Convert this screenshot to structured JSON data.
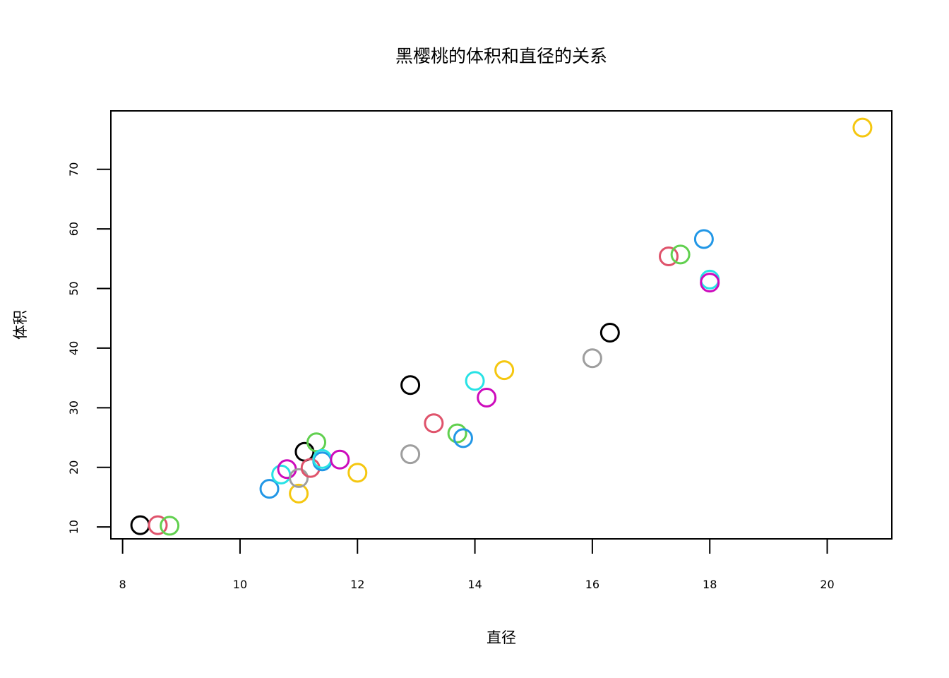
{
  "chart_data": {
    "type": "scatter",
    "title": "黑樱桃的体积和直径的关系",
    "xlabel": "直径",
    "ylabel": "体积",
    "xlim": [
      7.8,
      21.1
    ],
    "ylim": [
      8.0,
      79.8
    ],
    "xticks": [
      8,
      10,
      12,
      14,
      16,
      18,
      20
    ],
    "yticks": [
      10,
      20,
      30,
      40,
      50,
      60,
      70
    ],
    "grid": false,
    "legend": "none",
    "marker": "open-circle",
    "palette": [
      "#000000",
      "#DF536B",
      "#61D04F",
      "#2297E6",
      "#28E2E5",
      "#CD0BBC",
      "#F5C710",
      "#9E9E9E"
    ],
    "points": [
      {
        "x": 8.3,
        "y": 10.3,
        "color": "#000000"
      },
      {
        "x": 8.6,
        "y": 10.3,
        "color": "#DF536B"
      },
      {
        "x": 8.8,
        "y": 10.2,
        "color": "#61D04F"
      },
      {
        "x": 10.5,
        "y": 16.4,
        "color": "#2297E6"
      },
      {
        "x": 10.7,
        "y": 18.8,
        "color": "#28E2E5"
      },
      {
        "x": 10.8,
        "y": 19.7,
        "color": "#CD0BBC"
      },
      {
        "x": 11.0,
        "y": 15.6,
        "color": "#F5C710"
      },
      {
        "x": 11.0,
        "y": 18.2,
        "color": "#9E9E9E"
      },
      {
        "x": 11.1,
        "y": 22.6,
        "color": "#000000"
      },
      {
        "x": 11.2,
        "y": 19.9,
        "color": "#DF536B"
      },
      {
        "x": 11.3,
        "y": 24.2,
        "color": "#61D04F"
      },
      {
        "x": 11.4,
        "y": 21.0,
        "color": "#2297E6"
      },
      {
        "x": 11.4,
        "y": 21.4,
        "color": "#28E2E5"
      },
      {
        "x": 11.7,
        "y": 21.3,
        "color": "#CD0BBC"
      },
      {
        "x": 12.0,
        "y": 19.1,
        "color": "#F5C710"
      },
      {
        "x": 12.9,
        "y": 22.2,
        "color": "#9E9E9E"
      },
      {
        "x": 12.9,
        "y": 33.8,
        "color": "#000000"
      },
      {
        "x": 13.3,
        "y": 27.4,
        "color": "#DF536B"
      },
      {
        "x": 13.7,
        "y": 25.7,
        "color": "#61D04F"
      },
      {
        "x": 13.8,
        "y": 24.9,
        "color": "#2297E6"
      },
      {
        "x": 14.0,
        "y": 34.5,
        "color": "#28E2E5"
      },
      {
        "x": 14.2,
        "y": 31.7,
        "color": "#CD0BBC"
      },
      {
        "x": 14.5,
        "y": 36.3,
        "color": "#F5C710"
      },
      {
        "x": 16.0,
        "y": 38.3,
        "color": "#9E9E9E"
      },
      {
        "x": 16.3,
        "y": 42.6,
        "color": "#000000"
      },
      {
        "x": 17.3,
        "y": 55.4,
        "color": "#DF536B"
      },
      {
        "x": 17.5,
        "y": 55.7,
        "color": "#61D04F"
      },
      {
        "x": 17.9,
        "y": 58.3,
        "color": "#2297E6"
      },
      {
        "x": 18.0,
        "y": 51.5,
        "color": "#28E2E5"
      },
      {
        "x": 18.0,
        "y": 51.0,
        "color": "#CD0BBC"
      },
      {
        "x": 20.6,
        "y": 77.0,
        "color": "#F5C710"
      }
    ]
  }
}
